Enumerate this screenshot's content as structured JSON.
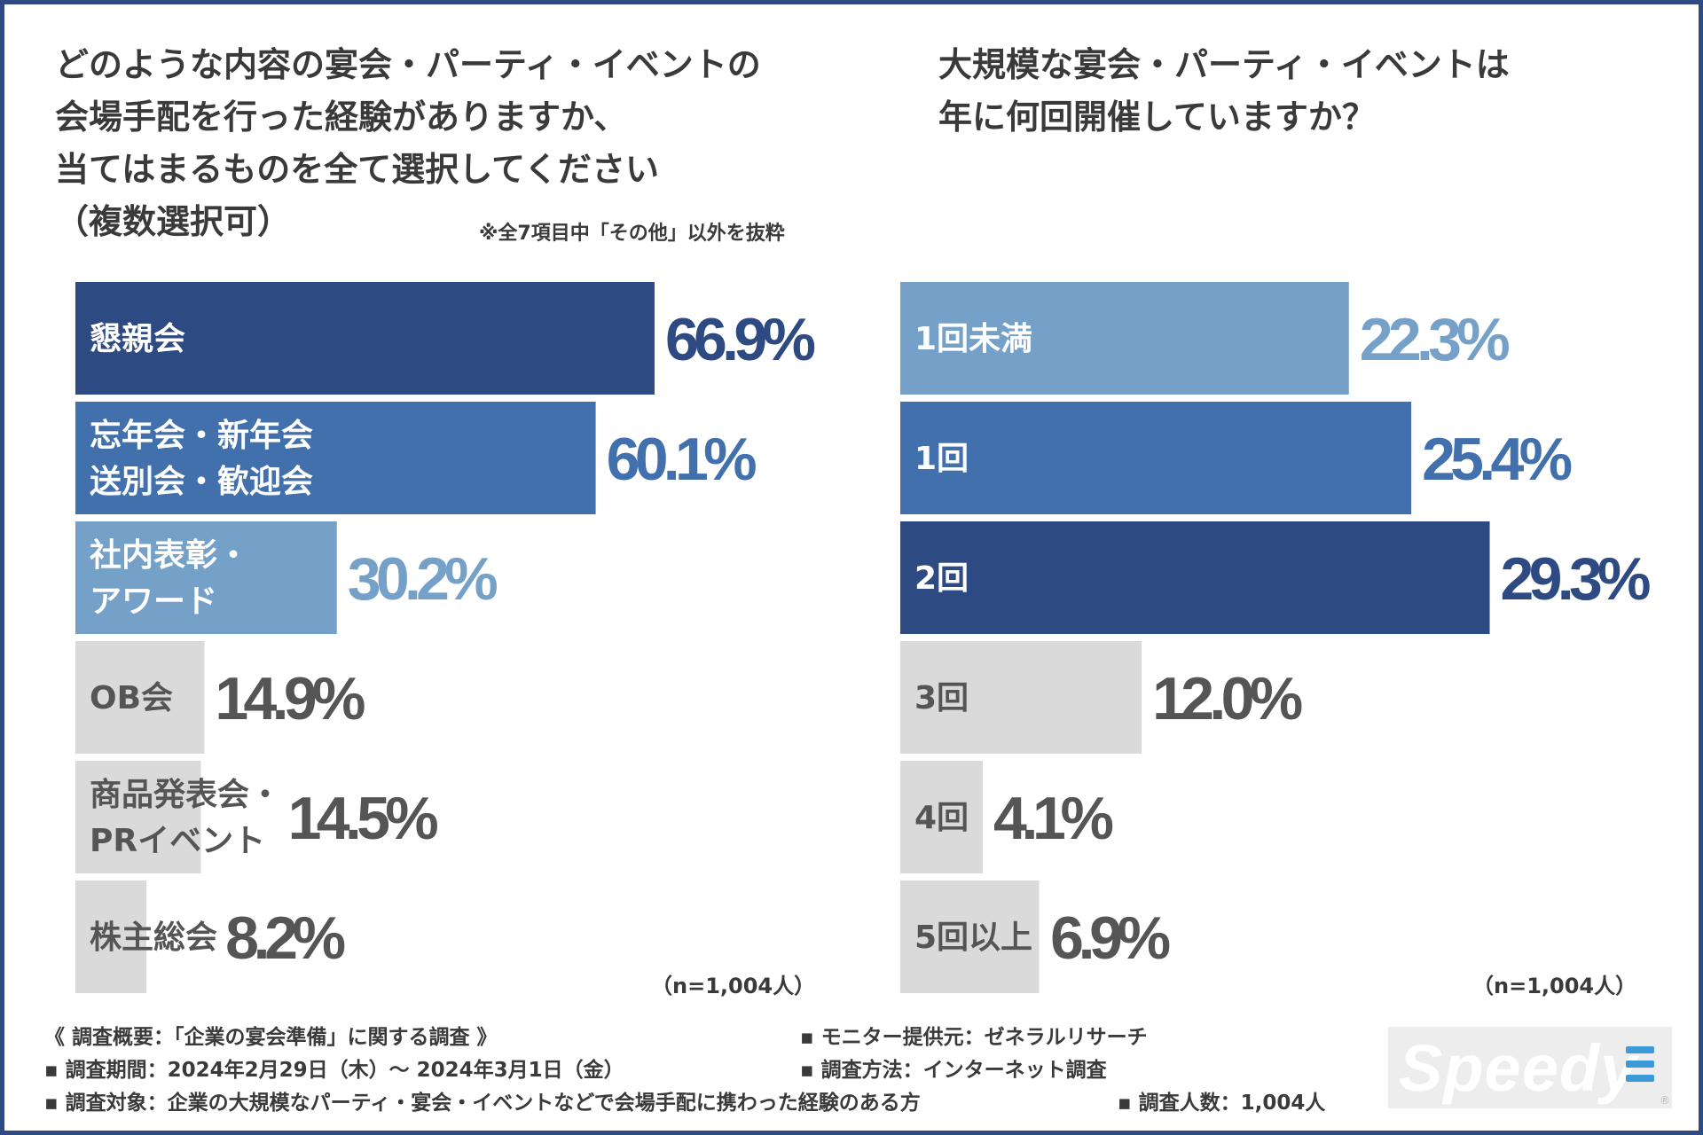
{
  "left_question": "どのような内容の宴会・パーティ・イベントの\n会場手配を行った経験がありますか、\n当てはまるものを全て選択してください\n（複数選択可）",
  "left_note": "※全7項目中「その他」以外を抜粋",
  "right_question": "大規模な宴会・パーティ・イベントは\n年に何回開催していますか？",
  "left_n": "（n=1,004人）",
  "right_n": "（n=1,004人）",
  "colors": {
    "dark_navy": "#2e4a82",
    "mid_blue": "#4170ad",
    "light_blue": "#75a1c8",
    "gray": "#dadada",
    "gray_text": "#555555"
  },
  "chart_data": [
    {
      "type": "bar",
      "orientation": "horizontal",
      "title": "どのような内容の宴会・パーティ・イベントの会場手配を行った経験がありますか、当てはまるものを全て選択してください（複数選択可）",
      "unit": "%",
      "xlim": [
        0,
        100
      ],
      "categories": [
        "懇親会",
        "忘年会・新年会\n送別会・歓迎会",
        "社内表彰・\nアワード",
        "OB会",
        "商品発表会・\nPRイベント",
        "株主総会"
      ],
      "values": [
        66.9,
        60.1,
        30.2,
        14.9,
        14.5,
        8.2
      ],
      "value_labels": [
        "66.9%",
        "60.1%",
        "30.2%",
        "14.9%",
        "14.5%",
        "8.2%"
      ],
      "bar_colors": [
        "#2e4a82",
        "#4170ad",
        "#75a1c8",
        "#dadada",
        "#dadada",
        "#dadada"
      ]
    },
    {
      "type": "bar",
      "orientation": "horizontal",
      "title": "大規模な宴会・パーティ・イベントは年に何回開催していますか？",
      "unit": "%",
      "xlim": [
        0,
        100
      ],
      "categories": [
        "1回未満",
        "1回",
        "2回",
        "3回",
        "4回",
        "5回以上"
      ],
      "values": [
        22.3,
        25.4,
        29.3,
        12.0,
        4.1,
        6.9
      ],
      "value_labels": [
        "22.3%",
        "25.4%",
        "29.3%",
        "12.0%",
        "4.1%",
        "6.9%"
      ],
      "bar_colors": [
        "#75a1c8",
        "#4170ad",
        "#2e4a82",
        "#dadada",
        "#dadada",
        "#dadada"
      ]
    }
  ],
  "footer": {
    "line1_left": "《 調査概要：「企業の宴会準備」に関する調査 》",
    "line1_right": "▪ モニター提供元：ゼネラルリサーチ",
    "line2_left": "▪ 調査期間：2024年2月29日（木）～ 2024年3月1日（金）",
    "line2_right": "▪ 調査方法：インターネット調査",
    "line3_left": "▪ 調査対象：企業の大規模なパーティ・宴会・イベントなどで会場手配に携わった経験のある方",
    "line3_right": "▪ 調査人数：1,004人"
  },
  "logo": {
    "text": "Speedy",
    "registered": "®"
  }
}
